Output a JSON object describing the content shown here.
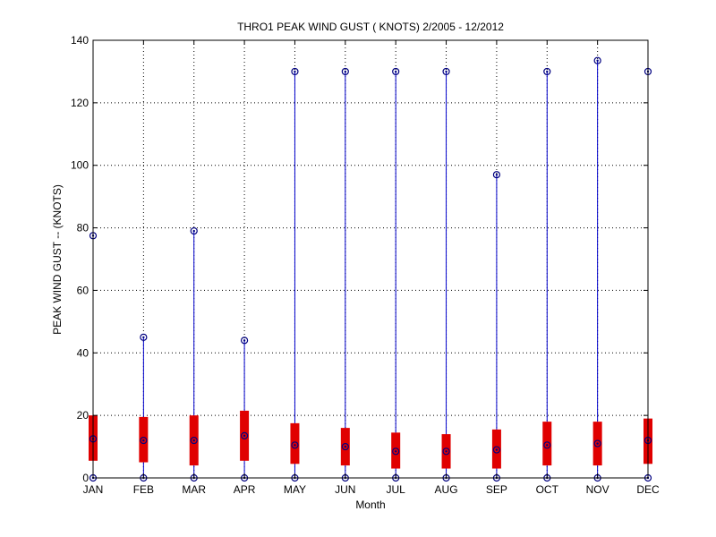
{
  "chart_data": {
    "type": "box",
    "title": "THRO1  PEAK WIND GUST ( KNOTS) 2/2005 - 12/2012",
    "xlabel": "Month",
    "ylabel": "PEAK WIND GUST -- (KNOTS)",
    "ylim": [
      0,
      140
    ],
    "yticks": [
      0,
      20,
      40,
      60,
      80,
      100,
      120,
      140
    ],
    "grid": true,
    "categories": [
      "JAN",
      "FEB",
      "MAR",
      "APR",
      "MAY",
      "JUN",
      "JUL",
      "AUG",
      "SEP",
      "OCT",
      "NOV",
      "DEC"
    ],
    "min": [
      0,
      0,
      0,
      0,
      0,
      0,
      0,
      0,
      0,
      0,
      0,
      0
    ],
    "q1": [
      5.5,
      5,
      4,
      5.5,
      4.5,
      4,
      3,
      3,
      3,
      4,
      4,
      4.5
    ],
    "median": [
      12.5,
      12,
      12,
      13.5,
      10.5,
      10,
      8.5,
      8.5,
      9,
      10.5,
      11,
      12
    ],
    "q3": [
      20,
      19.5,
      20,
      21.5,
      17.5,
      16,
      14.5,
      14,
      15.5,
      18,
      18,
      19
    ],
    "max": [
      77.5,
      45,
      79,
      44,
      130,
      130,
      130,
      130,
      97,
      130,
      133.5,
      130
    ],
    "colors": {
      "whisker": "#0000cc",
      "box": "#e00000",
      "marker": "#000080",
      "grid": "#000000",
      "axis": "#000000"
    }
  }
}
